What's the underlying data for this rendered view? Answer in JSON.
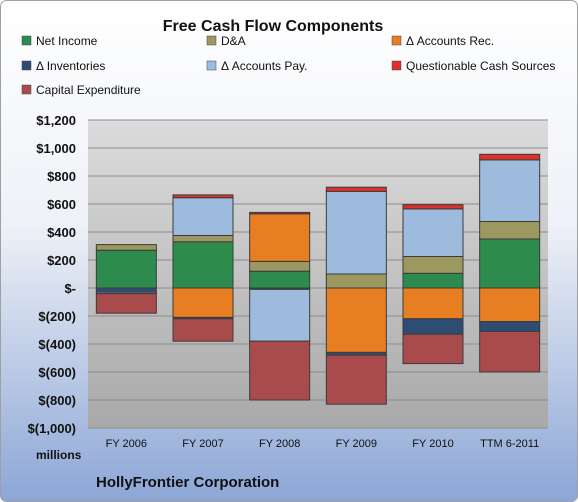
{
  "chart_data": {
    "type": "bar",
    "stacked": true,
    "title": "Free Cash Flow Components",
    "ylabel_unit": "millions",
    "footer": "HollyFrontier Corporation",
    "categories": [
      "FY 2006",
      "FY 2007",
      "FY 2008",
      "FY 2009",
      "FY 2010",
      "TTM 6-2011"
    ],
    "ylim": [
      -1000,
      1200
    ],
    "yticks": [
      -1000,
      -800,
      -600,
      -400,
      -200,
      0,
      200,
      400,
      600,
      800,
      1000,
      1200
    ],
    "ytick_labels": [
      "$(1,000)",
      "$(800)",
      "$(600)",
      "$(400)",
      "$(200)",
      "$-",
      "$200",
      "$400",
      "$600",
      "$800",
      "$1,000",
      "$1,200"
    ],
    "grid": true,
    "legend_position": "top",
    "series": [
      {
        "name": "Net Income",
        "color": "#2e8b4e",
        "values": [
          270,
          330,
          120,
          0,
          105,
          350
        ]
      },
      {
        "name": "D&A",
        "color": "#9c9860",
        "values": [
          40,
          45,
          70,
          100,
          120,
          125
        ]
      },
      {
        "name": "Δ Accounts Rec.",
        "color": "#e87e22",
        "values": [
          0,
          -210,
          340,
          -460,
          -220,
          -240
        ]
      },
      {
        "name": "Δ Inventories",
        "color": "#2e4d74",
        "values": [
          -30,
          -10,
          -10,
          -20,
          -110,
          -70
        ]
      },
      {
        "name": "Δ Accounts Pay.",
        "color": "#9dbbdd",
        "values": [
          -10,
          270,
          -370,
          590,
          340,
          440
        ]
      },
      {
        "name": "Questionable Cash Sources",
        "color": "#e0302c",
        "values": [
          0,
          20,
          10,
          30,
          30,
          40
        ]
      },
      {
        "name": "Capital Expenditure",
        "color": "#a94a4d",
        "values": [
          -140,
          -160,
          -420,
          -350,
          -210,
          -290
        ]
      }
    ]
  }
}
